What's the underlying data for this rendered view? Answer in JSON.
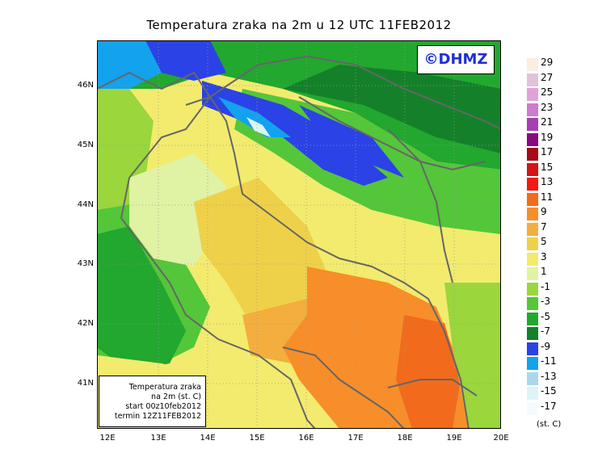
{
  "title": "Temperatura zraka na 2m u 12 UTC 11FEB2012",
  "logo": "©DHMZ",
  "lat_labels": [
    "46N",
    "45N",
    "44N",
    "43N",
    "42N",
    "41N"
  ],
  "lon_labels": [
    "12E",
    "13E",
    "14E",
    "15E",
    "16E",
    "17E",
    "18E",
    "19E",
    "20E"
  ],
  "info_box": {
    "line1": "Temperatura zraka",
    "line2": "na 2m (st. C)",
    "line3": "start 00z10feb2012",
    "line4": "termin 12Z11FEB2012"
  },
  "legend": {
    "units": "(st. C)",
    "labels": [
      "29",
      "27",
      "25",
      "23",
      "21",
      "19",
      "17",
      "15",
      "13",
      "11",
      "9",
      "7",
      "5",
      "3",
      "1",
      "-1",
      "-3",
      "-5",
      "-7",
      "-9",
      "-11",
      "-13",
      "-15",
      "-17"
    ],
    "colors": [
      "#fbeee0",
      "#e0c3da",
      "#e0a3d9",
      "#cf7bd0",
      "#a640b1",
      "#860a80",
      "#a80a18",
      "#d41416",
      "#f5180e",
      "#f26a1c",
      "#f78e2a",
      "#f3ae3d",
      "#efd149",
      "#f2eb6e",
      "#e0f2a4",
      "#9ad63c",
      "#54c63a",
      "#22a72f",
      "#14812a",
      "#2b42e6",
      "#13a2ee",
      "#a8d8ea",
      "#def4f7",
      "#f3fbfd"
    ]
  }
}
